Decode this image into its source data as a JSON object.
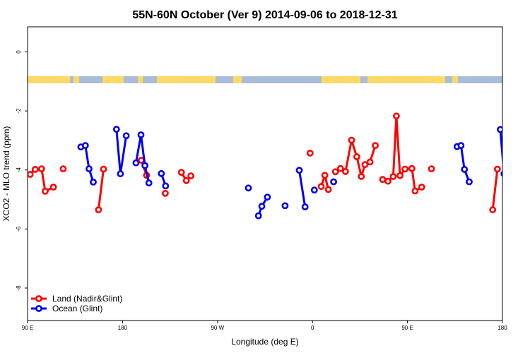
{
  "chart_data": {
    "type": "line",
    "title": "55N-60N October (Ver 9)   2014-09-06 to 2018-12-31",
    "xlabel": "Longitude (deg E)",
    "ylabel": "XCO2 - MLO trend (ppm)",
    "xlim": [
      90,
      270
    ],
    "ylim": [
      -9.1,
      0.85
    ],
    "x_ticks": [
      {
        "value": 90,
        "label": "90 E"
      },
      {
        "value": 126,
        "label": "180"
      },
      {
        "value": 162,
        "label": "90 W"
      },
      {
        "value": 198,
        "label": "0"
      },
      {
        "value": 234,
        "label": "90 E"
      },
      {
        "value": 270,
        "label": "180"
      }
    ],
    "y_ticks": [
      0,
      -2,
      -4,
      -6,
      -8
    ],
    "grid": false,
    "legend_position": "bottom-left",
    "colors": {
      "land": "#ff0000",
      "ocean": "#0000ee",
      "land_band": "#ffd966",
      "ocean_band": "#a9bcd9"
    },
    "series": [
      {
        "name": "Land (Nadir&Glint)",
        "color": "#ff0000",
        "segments": [
          [
            [
              91.0,
              -4.15
            ],
            [
              92.9,
              -3.98
            ],
            [
              95.3,
              -3.96
            ],
            [
              96.7,
              -4.72
            ],
            [
              99.8,
              -4.58
            ]
          ],
          [
            [
              103.5,
              -3.96
            ]
          ],
          [
            [
              116.9,
              -5.35
            ],
            [
              118.8,
              -3.97
            ]
          ],
          [
            [
              133.1,
              -3.67
            ],
            [
              135.1,
              -4.18
            ]
          ],
          [
            [
              142.2,
              -4.79
            ]
          ],
          [
            [
              148.3,
              -4.08
            ],
            [
              150.2,
              -4.36
            ],
            [
              151.9,
              -4.2
            ]
          ],
          [
            [
              197.1,
              -3.43
            ]
          ],
          [
            [
              201.3,
              -4.56
            ],
            [
              202.7,
              -4.18
            ],
            [
              204.0,
              -4.66
            ]
          ],
          [
            [
              206.7,
              -4.06
            ],
            [
              208.6,
              -3.95
            ],
            [
              210.5,
              -4.05
            ],
            [
              212.8,
              -2.99
            ],
            [
              214.8,
              -3.55
            ],
            [
              216.5,
              -4.22
            ],
            [
              217.9,
              -3.82
            ],
            [
              219.8,
              -3.73
            ],
            [
              221.8,
              -3.17
            ]
          ],
          [
            [
              224.6,
              -4.32
            ],
            [
              226.6,
              -4.38
            ],
            [
              228.6,
              -4.22
            ],
            [
              229.8,
              -2.17
            ],
            [
              231.2,
              -4.19
            ],
            [
              233.1,
              -3.97
            ],
            [
              235.7,
              -3.95
            ],
            [
              236.9,
              -4.71
            ],
            [
              239.4,
              -4.58
            ]
          ],
          [
            [
              243.1,
              -3.96
            ]
          ],
          [
            [
              266.3,
              -5.35
            ],
            [
              268.1,
              -3.97
            ]
          ]
        ]
      },
      {
        "name": "Ocean (Glint)",
        "color": "#0000ee",
        "segments": [
          [
            [
              110.2,
              -3.22
            ],
            [
              111.9,
              -3.17
            ],
            [
              113.3,
              -3.96
            ],
            [
              114.9,
              -4.41
            ]
          ],
          [
            [
              123.7,
              -2.62
            ],
            [
              125.2,
              -4.13
            ],
            [
              127.4,
              -2.84
            ]
          ],
          [
            [
              131.1,
              -3.76
            ],
            [
              133.0,
              -2.81
            ],
            [
              134.5,
              -3.85
            ],
            [
              136.0,
              -4.44
            ]
          ],
          [
            [
              140.7,
              -4.12
            ],
            [
              142.3,
              -4.54
            ]
          ],
          [
            [
              173.7,
              -4.61
            ]
          ],
          [
            [
              177.5,
              -5.55
            ],
            [
              178.8,
              -5.23
            ],
            [
              180.9,
              -4.92
            ]
          ],
          [
            [
              187.6,
              -5.21
            ]
          ],
          [
            [
              193.0,
              -4.01
            ],
            [
              195.2,
              -5.25
            ]
          ],
          [
            [
              198.7,
              -4.68
            ]
          ],
          [
            [
              206.0,
              -4.4
            ]
          ],
          [
            [
              252.8,
              -3.21
            ],
            [
              254.3,
              -3.17
            ],
            [
              255.6,
              -3.98
            ],
            [
              257.4,
              -4.4
            ]
          ],
          [
            [
              269.2,
              -2.63
            ],
            [
              270.6,
              -4.13
            ]
          ]
        ]
      }
    ]
  }
}
